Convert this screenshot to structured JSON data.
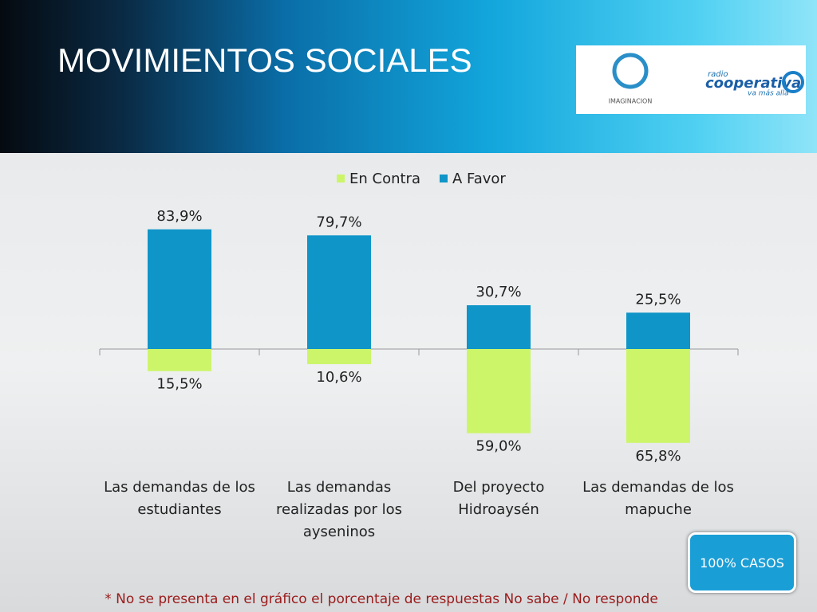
{
  "header": {
    "title": "MOVIMIENTOS SOCIALES",
    "logo_left": "IMAGINACION",
    "logo_right_small": "radio",
    "logo_right": "cooperativa",
    "logo_right_tagline": "va más allá"
  },
  "chart_data": {
    "type": "bar",
    "categories": [
      "Las demandas de los estudiantes",
      "Las demandas realizadas por los ayseninos",
      "Del proyecto Hidroaysén",
      "Las demandas de los mapuche"
    ],
    "series": [
      {
        "name": "En Contra",
        "color": "#ccf56a",
        "values": [
          15.5,
          10.6,
          59.0,
          65.8
        ],
        "value_labels": [
          "15,5%",
          "10,6%",
          "59,0%",
          "65,8%"
        ]
      },
      {
        "name": "A Favor",
        "color": "#0f95c8",
        "values": [
          83.9,
          79.7,
          30.7,
          25.5
        ],
        "value_labels": [
          "83,9%",
          "79,7%",
          "30,7%",
          "25,5%"
        ]
      }
    ],
    "legend": "top"
  },
  "button": "100% CASOS",
  "footnote": "*  No se presenta en el gráfico el porcentaje de respuestas No sabe / No responde"
}
